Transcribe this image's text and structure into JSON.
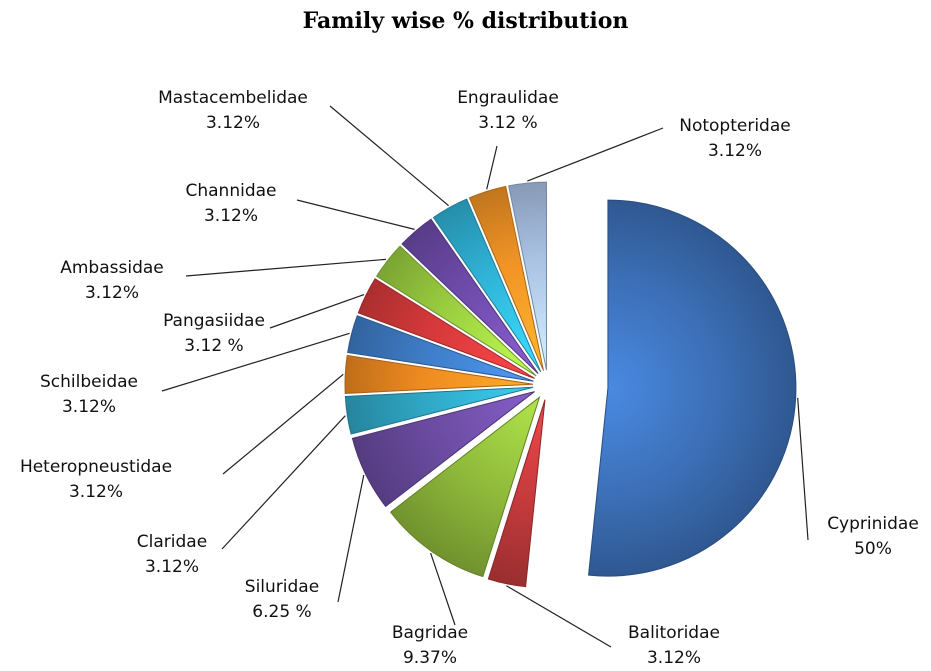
{
  "chart_data": {
    "type": "pie",
    "title": "Family wise % distribution",
    "slices": [
      {
        "name": "Cyprinidae",
        "value_label": "50%",
        "value": 50,
        "color": "#3B6EB5"
      },
      {
        "name": "Balitoridae",
        "value_label": "3.12%",
        "value": 3.12,
        "color": "#C0393B"
      },
      {
        "name": "Bagridae",
        "value_label": "9.37%",
        "value": 9.37,
        "color": "#8DB73A"
      },
      {
        "name": "Siluridae",
        "value_label": "6.25 %",
        "value": 6.25,
        "color": "#6A4BA0"
      },
      {
        "name": "Claridae",
        "value_label": "3.12%",
        "value": 3.12,
        "color": "#2FA6C4"
      },
      {
        "name": "Heteropneustidae",
        "value_label": "3.12%",
        "value": 3.12,
        "color": "#EE8A20"
      },
      {
        "name": "Schilbeidae",
        "value_label": "3.12%",
        "value": 3.12,
        "color": "#3E7CC6"
      },
      {
        "name": "Pangasiidae",
        "value_label": "3.12 %",
        "value": 3.12,
        "color": "#D6393B"
      },
      {
        "name": "Ambassidae",
        "value_label": "3.12%",
        "value": 3.12,
        "color": "#9ACD40"
      },
      {
        "name": "Channidae",
        "value_label": "3.12%",
        "value": 3.12,
        "color": "#6E4BAA"
      },
      {
        "name": "Mastacembelidae",
        "value_label": "3.12%",
        "value": 3.12,
        "color": "#2FB2D6"
      },
      {
        "name": "Engraulidae",
        "value_label": "3.12 %",
        "value": 3.12,
        "color": "#F19325"
      },
      {
        "name": "Notopteridae",
        "value_label": "3.12%",
        "value": 3.12,
        "color": "#A9C1E3"
      }
    ]
  }
}
